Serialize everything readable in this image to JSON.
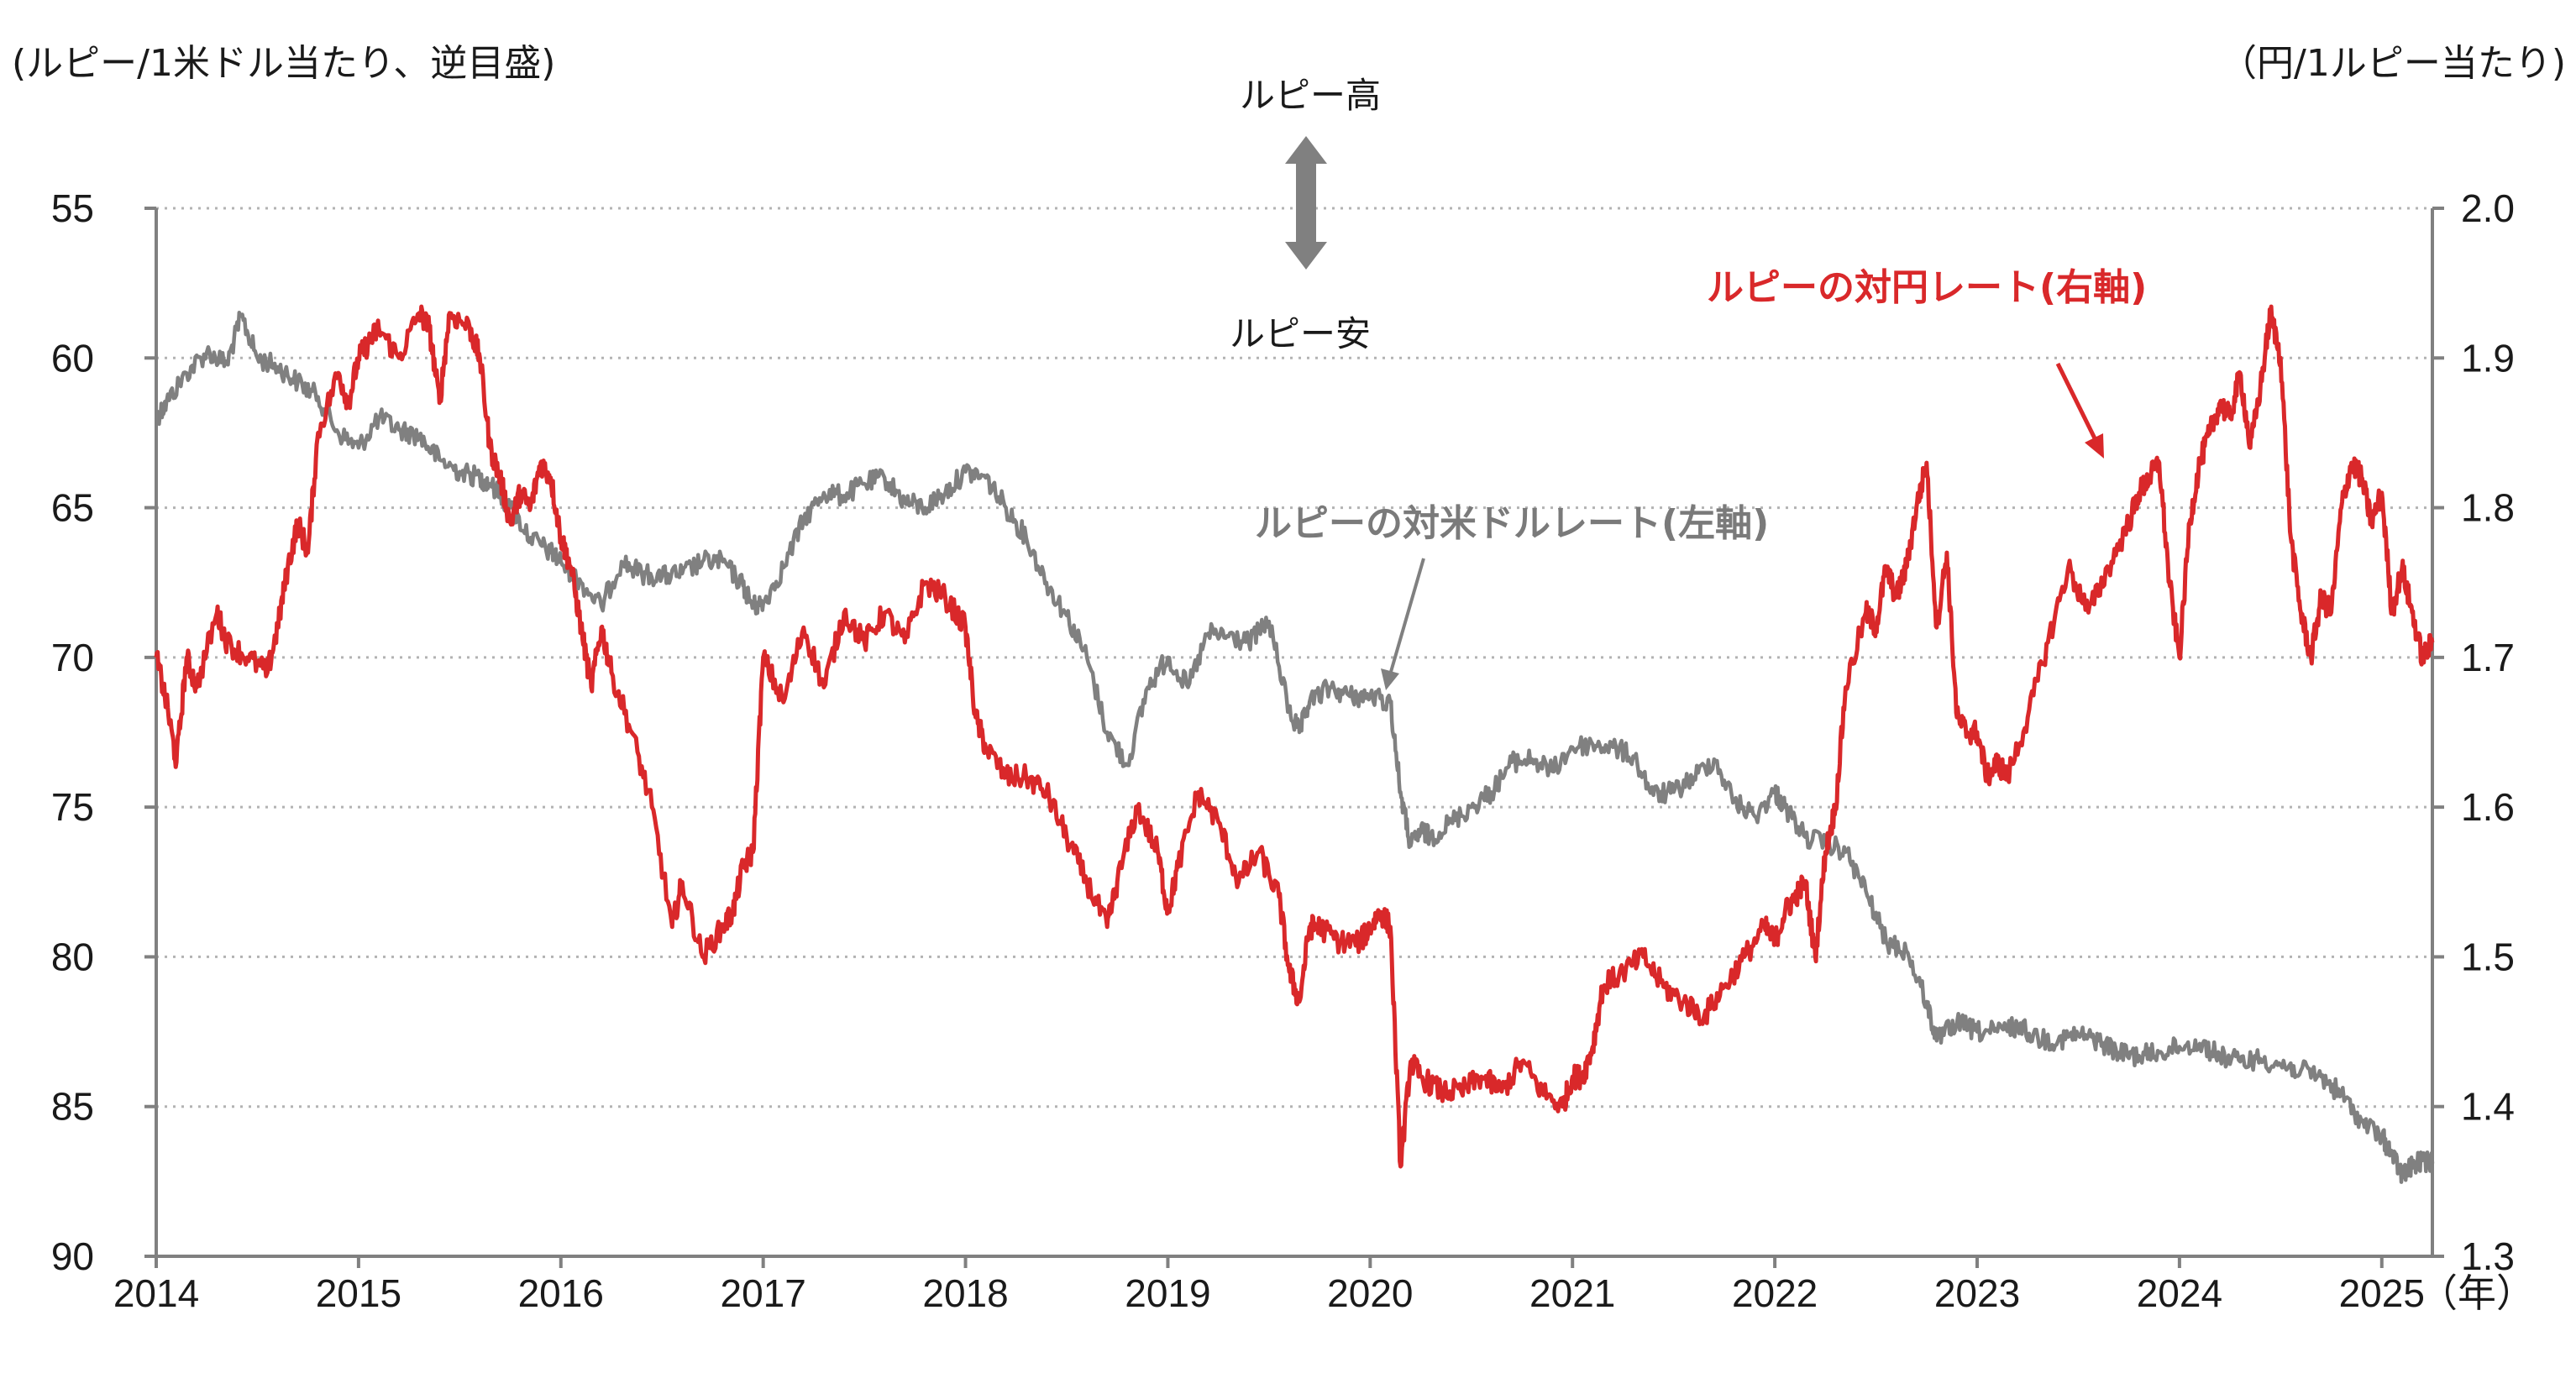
{
  "chart_data": {
    "type": "line",
    "left_axis_unit": "(ルピー/1米ドル当たり、逆目盛)",
    "right_axis_unit": "（円/1ルピー当たり)",
    "x_unit": "（年）",
    "arrow_up_label": "ルピー高",
    "arrow_down_label": "ルピー安",
    "left_axis": {
      "ticks": [
        "55",
        "60",
        "65",
        "70",
        "75",
        "80",
        "85",
        "90"
      ],
      "range": [
        55,
        90
      ],
      "inverted": true
    },
    "right_axis": {
      "ticks": [
        "2.0",
        "1.9",
        "1.8",
        "1.7",
        "1.6",
        "1.5",
        "1.4",
        "1.3"
      ],
      "range": [
        1.3,
        2.0
      ]
    },
    "x_ticks": [
      "2014",
      "2015",
      "2016",
      "2017",
      "2018",
      "2019",
      "2020",
      "2021",
      "2022",
      "2023",
      "2024",
      "2025"
    ],
    "x_range": [
      2014.0,
      2025.25
    ],
    "grid": "horizontal dotted",
    "colors": {
      "jpy": "#d9282a",
      "usd": "#808080",
      "axis": "#808080",
      "grid": "#b3b3b3"
    },
    "series": [
      {
        "name": "ルピーの対米ドルレート(左軸)",
        "axis": "left",
        "color": "#808080",
        "x": [
          2014.0,
          2014.05,
          2014.15,
          2014.25,
          2014.35,
          2014.42,
          2014.5,
          2014.6,
          2014.7,
          2014.8,
          2014.9,
          2015.0,
          2015.1,
          2015.2,
          2015.3,
          2015.4,
          2015.5,
          2015.6,
          2015.65,
          2015.75,
          2015.85,
          2015.95,
          2016.0,
          2016.1,
          2016.2,
          2016.3,
          2016.4,
          2016.5,
          2016.6,
          2016.7,
          2016.8,
          2016.9,
          2016.95,
          2017.0,
          2017.1,
          2017.2,
          2017.3,
          2017.4,
          2017.5,
          2017.6,
          2017.7,
          2017.8,
          2017.9,
          2018.0,
          2018.1,
          2018.2,
          2018.3,
          2018.4,
          2018.5,
          2018.6,
          2018.7,
          2018.8,
          2018.9,
          2019.0,
          2019.1,
          2019.2,
          2019.3,
          2019.4,
          2019.5,
          2019.6,
          2019.65,
          2019.7,
          2019.8,
          2019.9,
          2020.0,
          2020.1,
          2020.15,
          2020.2,
          2020.25,
          2020.3,
          2020.4,
          2020.5,
          2020.6,
          2020.7,
          2020.8,
          2020.9,
          2021.0,
          2021.1,
          2021.2,
          2021.3,
          2021.4,
          2021.5,
          2021.6,
          2021.7,
          2021.8,
          2021.9,
          2022.0,
          2022.05,
          2022.15,
          2022.25,
          2022.35,
          2022.45,
          2022.55,
          2022.65,
          2022.75,
          2022.8,
          2022.9,
          2023.0,
          2023.1,
          2023.2,
          2023.3,
          2023.4,
          2023.5,
          2023.6,
          2023.7,
          2023.8,
          2023.9,
          2024.0,
          2024.1,
          2024.2,
          2024.3,
          2024.4,
          2024.5,
          2024.6,
          2024.7,
          2024.8,
          2024.9,
          2025.0,
          2025.05,
          2025.1,
          2025.15,
          2025.2,
          2025.25
        ],
        "values": [
          62.0,
          61.5,
          60.5,
          59.8,
          60.2,
          58.6,
          60.0,
          60.3,
          60.8,
          61.3,
          62.5,
          63.0,
          62.0,
          62.4,
          62.6,
          63.4,
          63.8,
          64.0,
          64.2,
          65.0,
          66.0,
          66.5,
          66.8,
          67.5,
          68.3,
          66.8,
          67.2,
          67.3,
          67.2,
          66.8,
          66.8,
          67.6,
          68.3,
          68.2,
          67.0,
          65.4,
          64.5,
          64.6,
          64.2,
          64.0,
          64.8,
          65.0,
          64.5,
          63.8,
          64.0,
          65.0,
          66.0,
          67.5,
          68.6,
          70.0,
          72.5,
          73.6,
          71.0,
          70.0,
          71.0,
          69.2,
          69.3,
          69.5,
          68.8,
          71.8,
          72.5,
          71.5,
          71.0,
          71.3,
          71.3,
          71.5,
          74.5,
          76.3,
          75.8,
          76.0,
          75.5,
          75.0,
          74.5,
          73.5,
          73.4,
          73.8,
          73.0,
          72.9,
          73.0,
          73.3,
          74.6,
          74.5,
          74.0,
          73.4,
          74.8,
          75.3,
          74.5,
          75.0,
          76.0,
          76.2,
          76.5,
          77.8,
          79.5,
          79.8,
          81.5,
          82.8,
          82.2,
          82.5,
          82.5,
          82.3,
          82.7,
          82.8,
          82.6,
          82.8,
          83.2,
          83.3,
          83.2,
          83.0,
          82.9,
          83.3,
          83.5,
          83.4,
          83.6,
          83.8,
          84.0,
          84.6,
          85.5,
          86.0,
          86.6,
          87.3,
          87.0,
          86.8,
          86.9
        ]
      },
      {
        "name": "ルピーの対円レート(右軸)",
        "axis": "right",
        "color": "#d9282a",
        "x": [
          2014.0,
          2014.05,
          2014.1,
          2014.15,
          2014.2,
          2014.3,
          2014.35,
          2014.45,
          2014.55,
          2014.6,
          2014.65,
          2014.7,
          2014.75,
          2014.8,
          2014.9,
          2014.95,
          2015.0,
          2015.05,
          2015.1,
          2015.2,
          2015.3,
          2015.35,
          2015.4,
          2015.45,
          2015.55,
          2015.6,
          2015.65,
          2015.7,
          2015.75,
          2015.8,
          2015.85,
          2015.9,
          2015.95,
          2016.0,
          2016.05,
          2016.1,
          2016.15,
          2016.2,
          2016.25,
          2016.35,
          2016.45,
          2016.55,
          2016.6,
          2016.7,
          2016.8,
          2016.85,
          2016.9,
          2016.95,
          2017.0,
          2017.1,
          2017.2,
          2017.3,
          2017.4,
          2017.5,
          2017.6,
          2017.7,
          2017.8,
          2017.9,
          2018.0,
          2018.05,
          2018.1,
          2018.2,
          2018.3,
          2018.4,
          2018.5,
          2018.6,
          2018.7,
          2018.75,
          2018.85,
          2018.95,
          2019.0,
          2019.05,
          2019.15,
          2019.25,
          2019.35,
          2019.45,
          2019.55,
          2019.6,
          2019.65,
          2019.7,
          2019.75,
          2019.85,
          2019.95,
          2020.0,
          2020.05,
          2020.1,
          2020.15,
          2020.2,
          2020.25,
          2020.35,
          2020.45,
          2020.55,
          2020.65,
          2020.75,
          2020.85,
          2020.95,
          2021.0,
          2021.05,
          2021.1,
          2021.15,
          2021.25,
          2021.35,
          2021.45,
          2021.55,
          2021.65,
          2021.75,
          2021.85,
          2021.95,
          2022.0,
          2022.05,
          2022.1,
          2022.15,
          2022.2,
          2022.25,
          2022.3,
          2022.35,
          2022.45,
          2022.5,
          2022.55,
          2022.6,
          2022.65,
          2022.7,
          2022.75,
          2022.8,
          2022.85,
          2022.9,
          2022.95,
          2023.0,
          2023.05,
          2023.1,
          2023.15,
          2023.25,
          2023.35,
          2023.45,
          2023.55,
          2023.65,
          2023.75,
          2023.8,
          2023.85,
          2023.9,
          2023.95,
          2024.0,
          2024.05,
          2024.1,
          2024.15,
          2024.2,
          2024.25,
          2024.3,
          2024.35,
          2024.4,
          2024.45,
          2024.5,
          2024.55,
          2024.6,
          2024.65,
          2024.7,
          2024.75,
          2024.8,
          2024.85,
          2024.9,
          2024.95,
          2025.0,
          2025.05,
          2025.1,
          2025.15,
          2025.2,
          2025.25
        ],
        "values": [
          1.7,
          1.67,
          1.63,
          1.7,
          1.68,
          1.73,
          1.71,
          1.7,
          1.69,
          1.72,
          1.76,
          1.79,
          1.77,
          1.85,
          1.89,
          1.87,
          1.9,
          1.91,
          1.92,
          1.9,
          1.93,
          1.92,
          1.87,
          1.93,
          1.92,
          1.9,
          1.84,
          1.82,
          1.79,
          1.81,
          1.8,
          1.83,
          1.82,
          1.78,
          1.76,
          1.72,
          1.68,
          1.72,
          1.69,
          1.65,
          1.6,
          1.52,
          1.55,
          1.5,
          1.52,
          1.53,
          1.56,
          1.57,
          1.7,
          1.67,
          1.72,
          1.68,
          1.73,
          1.71,
          1.73,
          1.71,
          1.75,
          1.74,
          1.72,
          1.66,
          1.64,
          1.62,
          1.62,
          1.61,
          1.58,
          1.55,
          1.52,
          1.55,
          1.6,
          1.57,
          1.53,
          1.56,
          1.61,
          1.59,
          1.55,
          1.57,
          1.54,
          1.49,
          1.47,
          1.52,
          1.52,
          1.51,
          1.51,
          1.52,
          1.53,
          1.52,
          1.36,
          1.43,
          1.42,
          1.41,
          1.41,
          1.42,
          1.41,
          1.43,
          1.41,
          1.4,
          1.42,
          1.42,
          1.44,
          1.48,
          1.49,
          1.5,
          1.48,
          1.47,
          1.46,
          1.48,
          1.5,
          1.52,
          1.51,
          1.53,
          1.54,
          1.55,
          1.5,
          1.57,
          1.6,
          1.68,
          1.73,
          1.72,
          1.76,
          1.74,
          1.76,
          1.8,
          1.83,
          1.72,
          1.77,
          1.66,
          1.65,
          1.65,
          1.62,
          1.63,
          1.62,
          1.66,
          1.71,
          1.76,
          1.73,
          1.76,
          1.79,
          1.81,
          1.82,
          1.83,
          1.75,
          1.7,
          1.79,
          1.83,
          1.85,
          1.87,
          1.86,
          1.89,
          1.84,
          1.88,
          1.93,
          1.9,
          1.78,
          1.73,
          1.7,
          1.74,
          1.73,
          1.8,
          1.83,
          1.82,
          1.79,
          1.81,
          1.73,
          1.76,
          1.73,
          1.7,
          1.71
        ]
      }
    ],
    "annotations": [
      {
        "text": "ルピーの対円レート(右軸)",
        "color": "#d9282a"
      },
      {
        "text": "ルピーの対米ドルレート(左軸)",
        "color": "#7a7a7a"
      }
    ]
  }
}
